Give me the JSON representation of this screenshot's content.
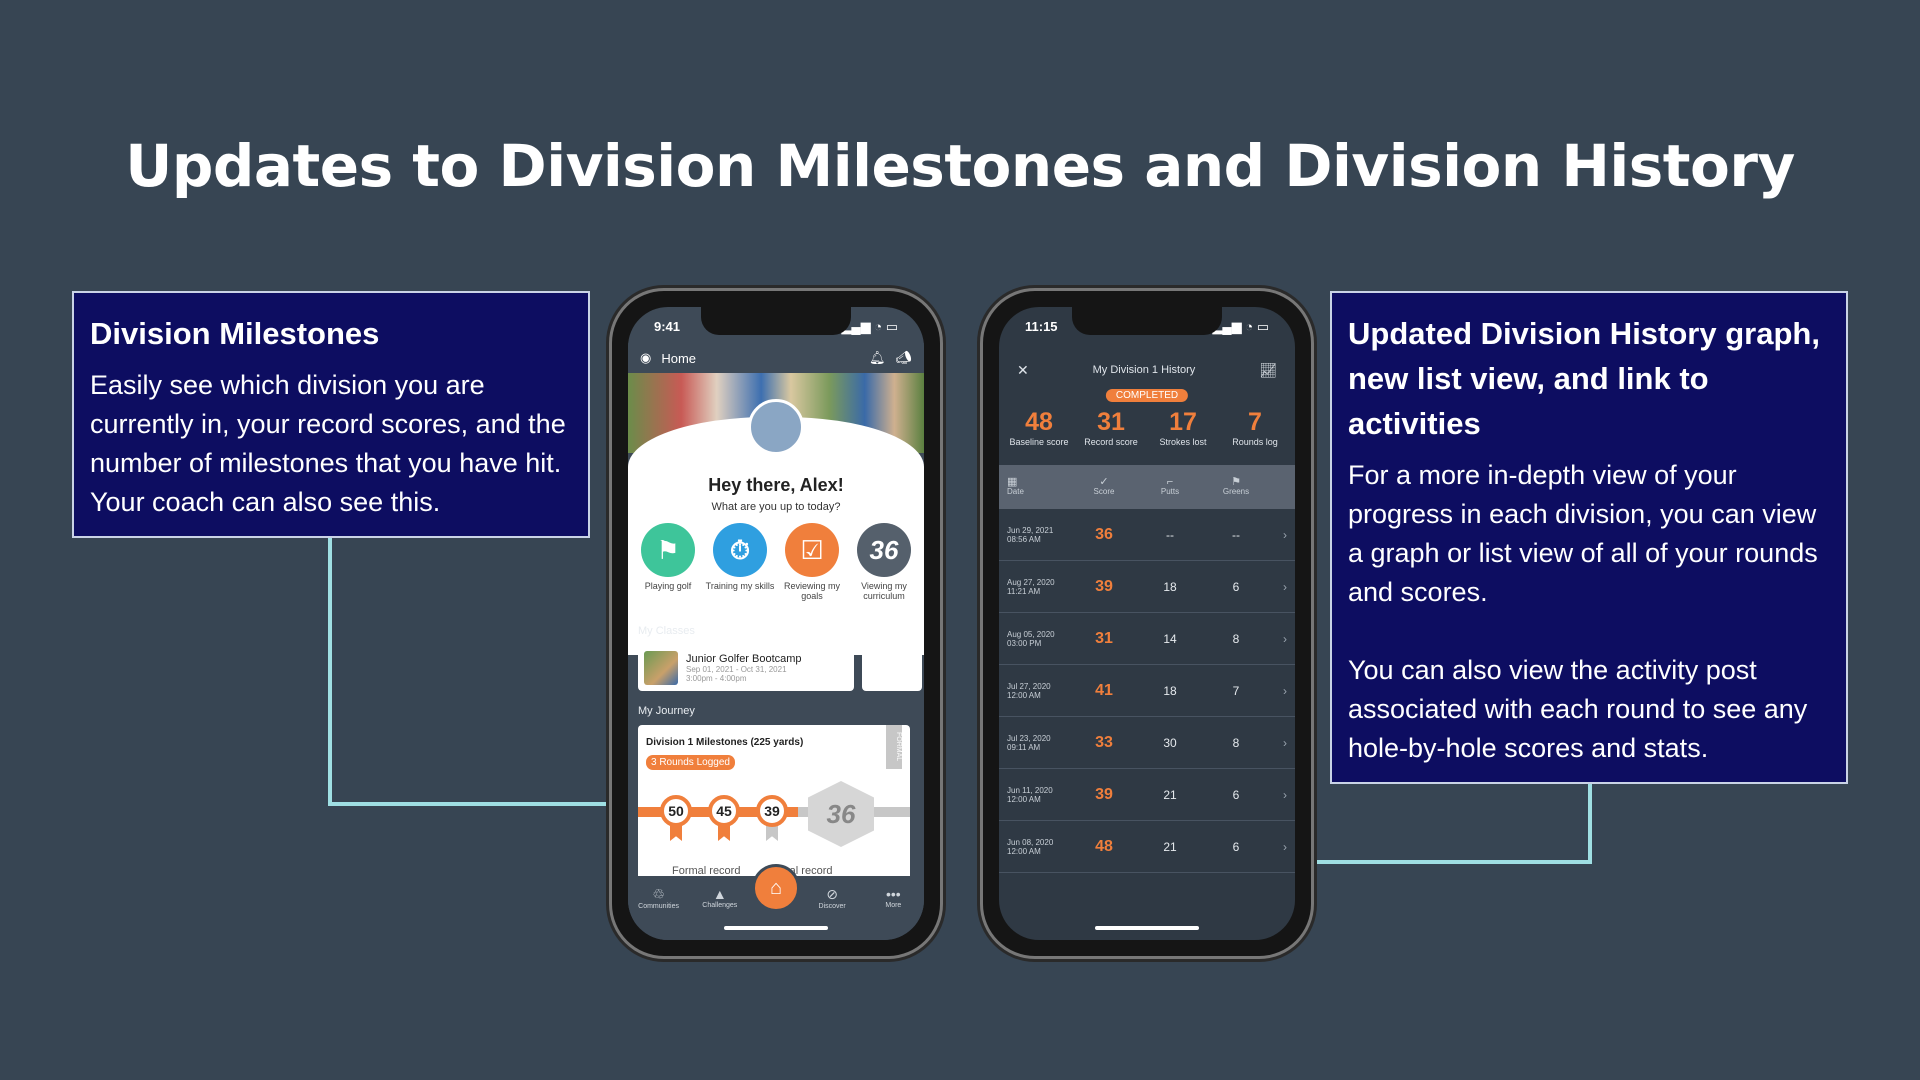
{
  "title": "Updates to Division Milestones and Division History",
  "left_callout": {
    "heading": "Division Milestones",
    "body": "Easily see which division you are currently in, your record scores, and the number of milestones that you have hit. Your coach can also see this."
  },
  "right_callout": {
    "heading": "Updated Division History graph, new list view, and link to activities",
    "body1": "For a more in-depth view of your progress in each division, you can view a graph or list view of all of your rounds and scores.",
    "body2": "You can also view the activity post associated with each round to see any hole-by-hole scores and stats."
  },
  "phone1": {
    "time": "9:41",
    "header_title": "Home",
    "greeting": "Hey there, Alex!",
    "subgreeting": "What are you up to today?",
    "actions": [
      {
        "label": "Playing golf",
        "icon": "flag-icon",
        "color": "#3ec59a"
      },
      {
        "label": "Training my skills",
        "icon": "stopwatch-icon",
        "color": "#2f9fe0"
      },
      {
        "label": "Reviewing my goals",
        "icon": "clipboard-check-icon",
        "color": "#f07f3c"
      },
      {
        "label": "Viewing my curriculum",
        "icon": "36-logo-icon",
        "color": "#55606c"
      }
    ],
    "classes_label": "My Classes",
    "class": {
      "name": "Junior Golfer Bootcamp",
      "dates": "Sep 01, 2021 - Oct 31, 2021",
      "time": "3:00pm - 4:00pm"
    },
    "journey_label": "My Journey",
    "journey": {
      "title": "Division 1 Milestones (225 yards)",
      "badge": "3 Rounds Logged",
      "tag": "FORMAL",
      "milestones": [
        "50",
        "45",
        "39"
      ],
      "hex_value": "36",
      "formal_label": "Formal record",
      "casual_label": "Casual record"
    },
    "tabs": [
      {
        "label": "Communities",
        "icon": "community-icon"
      },
      {
        "label": "Challenges",
        "icon": "mountain-flag-icon"
      },
      {
        "label": "Discover",
        "icon": "compass-icon"
      },
      {
        "label": "More",
        "icon": "more-dots-icon"
      }
    ]
  },
  "phone2": {
    "time": "11:15",
    "header_title": "My Division 1 History",
    "badge": "COMPLETED",
    "stats": [
      {
        "value": "48",
        "label": "Baseline score"
      },
      {
        "value": "31",
        "label": "Record score"
      },
      {
        "value": "17",
        "label": "Strokes lost"
      },
      {
        "value": "7",
        "label": "Rounds log"
      }
    ],
    "columns": [
      "Date",
      "Score",
      "Putts",
      "Greens"
    ],
    "rows": [
      {
        "date": "Jun 29, 2021",
        "time": "08:56 AM",
        "score": "36",
        "putts": "--",
        "greens": "--"
      },
      {
        "date": "Aug 27, 2020",
        "time": "11:21 AM",
        "score": "39",
        "putts": "18",
        "greens": "6"
      },
      {
        "date": "Aug 05, 2020",
        "time": "03:00 PM",
        "score": "31",
        "putts": "14",
        "greens": "8"
      },
      {
        "date": "Jul 27, 2020",
        "time": "12:00 AM",
        "score": "41",
        "putts": "18",
        "greens": "7"
      },
      {
        "date": "Jul 23, 2020",
        "time": "09:11 AM",
        "score": "33",
        "putts": "30",
        "greens": "8"
      },
      {
        "date": "Jun 11, 2020",
        "time": "12:00 AM",
        "score": "39",
        "putts": "21",
        "greens": "6"
      },
      {
        "date": "Jun 08, 2020",
        "time": "12:00 AM",
        "score": "48",
        "putts": "21",
        "greens": "6"
      }
    ]
  },
  "colors": {
    "background": "#374553",
    "callout": "#0d0d61",
    "accent": "#f07f3c",
    "connector": "#9fdfe3"
  }
}
